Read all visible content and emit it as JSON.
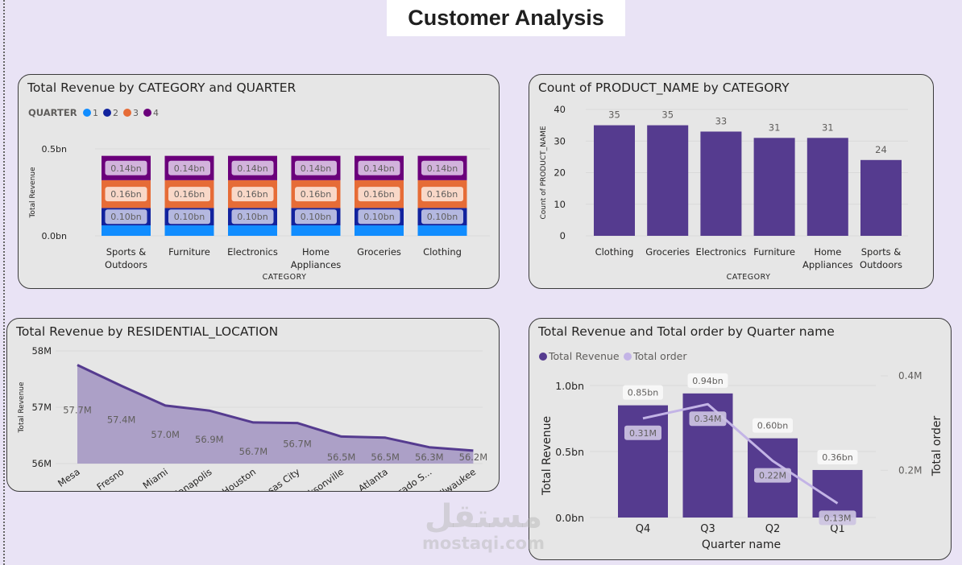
{
  "page": {
    "title": "Customer Analysis",
    "watermark_ar": "مستقل",
    "watermark_en": "mostaqi.com"
  },
  "colors": {
    "background": "#E9E3F5",
    "panel": "#E6E6E6",
    "bar_purple": "#553B8F",
    "line_light_purple": "#C3B4E6",
    "area_fill": "#ACA0C7",
    "q1": "#118DFF",
    "q2": "#12239E",
    "q3": "#E66C37",
    "q4": "#6B007B"
  },
  "chart_data": [
    {
      "id": "revenue-by-category-quarter",
      "type": "bar",
      "stacked": true,
      "title": "Total Revenue by CATEGORY and QUARTER",
      "legend_title": "QUARTER",
      "legend_position": "top-left",
      "xlabel": "CATEGORY",
      "ylabel": "Total Revenue",
      "ylim": [
        0,
        0.5
      ],
      "yticks": [
        {
          "v": 0,
          "label": "0.0bn"
        },
        {
          "v": 0.5,
          "label": "0.5bn"
        }
      ],
      "categories": [
        "Sports & Outdoors",
        "Furniture",
        "Electronics",
        "Home Appliances",
        "Groceries",
        "Clothing"
      ],
      "category_lines": [
        [
          "Sports &",
          "Outdoors"
        ],
        [
          "Furniture"
        ],
        [
          "Electronics"
        ],
        [
          "Home",
          "Appliances"
        ],
        [
          "Groceries"
        ],
        [
          "Clothing"
        ]
      ],
      "series": [
        {
          "name": "1",
          "color": "#118DFF",
          "values": [
            0.06,
            0.06,
            0.06,
            0.06,
            0.06,
            0.06
          ],
          "labels": null
        },
        {
          "name": "2",
          "color": "#12239E",
          "values": [
            0.1,
            0.1,
            0.1,
            0.1,
            0.1,
            0.1
          ],
          "labels": [
            "0.10bn",
            "0.10bn",
            "0.10bn",
            "0.10bn",
            "0.10bn",
            "0.10bn"
          ],
          "label_bg": "#B4B8E0"
        },
        {
          "name": "3",
          "color": "#E66C37",
          "values": [
            0.16,
            0.16,
            0.16,
            0.16,
            0.16,
            0.16
          ],
          "labels": [
            "0.16bn",
            "0.16bn",
            "0.16bn",
            "0.16bn",
            "0.16bn",
            "0.16bn"
          ],
          "label_bg": "#F9D8C8"
        },
        {
          "name": "4",
          "color": "#6B007B",
          "values": [
            0.14,
            0.14,
            0.14,
            0.14,
            0.14,
            0.14
          ],
          "labels": [
            "0.14bn",
            "0.14bn",
            "0.14bn",
            "0.14bn",
            "0.14bn",
            "0.14bn"
          ],
          "label_bg": "#D2B3DC"
        }
      ],
      "grid": true
    },
    {
      "id": "count-product-by-category",
      "type": "bar",
      "title": "Count of PRODUCT_NAME by CATEGORY",
      "xlabel": "CATEGORY",
      "ylabel": "Count of PRODUCT_NAME",
      "ylim": [
        0,
        40
      ],
      "yticks": [
        0,
        10,
        20,
        30,
        40
      ],
      "categories": [
        "Clothing",
        "Groceries",
        "Electronics",
        "Furniture",
        "Home Appliances",
        "Sports & Outdoors"
      ],
      "category_lines": [
        [
          "Clothing"
        ],
        [
          "Groceries"
        ],
        [
          "Electronics"
        ],
        [
          "Furniture"
        ],
        [
          "Home",
          "Appliances"
        ],
        [
          "Sports &",
          "Outdoors"
        ]
      ],
      "values": [
        35,
        35,
        33,
        31,
        31,
        24
      ],
      "labels": [
        "35",
        "35",
        "33",
        "31",
        "31",
        "24"
      ],
      "grid": true
    },
    {
      "id": "revenue-by-location",
      "type": "area",
      "title": "Total Revenue by RESIDENTIAL_LOCATION",
      "xlabel": "RESIDENTIAL_LOCATION",
      "ylabel": "Total Revenue",
      "ylim": [
        56,
        58
      ],
      "yticks": [
        {
          "v": 56,
          "label": "56M"
        },
        {
          "v": 57,
          "label": "57M"
        },
        {
          "v": 58,
          "label": "58M"
        }
      ],
      "categories": [
        "Mesa",
        "Fresno",
        "Miami",
        "Indianapolis",
        "Houston",
        "Kansas City",
        "Jacksonville",
        "Atlanta",
        "Colorado S...",
        "Milwaukee"
      ],
      "values": [
        57.75,
        57.38,
        57.03,
        56.94,
        56.73,
        56.72,
        56.48,
        56.46,
        56.29,
        56.23
      ],
      "labels": [
        "57.7M",
        "57.4M",
        "57.0M",
        "56.9M",
        "56.7M",
        "56.7M",
        "56.5M",
        "56.5M",
        "56.3M",
        "56.2M"
      ],
      "grid": true
    },
    {
      "id": "revenue-and-orders-by-quarter",
      "type": "bar",
      "combo": "bar+line",
      "title": "Total Revenue and Total order by Quarter name",
      "xlabel": "Quarter name",
      "ylabel": "Total Revenue",
      "ylabel_right": "Total order",
      "legend_position": "top-left",
      "legend": [
        {
          "name": "Total Revenue",
          "color": "#553B8F"
        },
        {
          "name": "Total order",
          "color": "#C3B4E6"
        }
      ],
      "categories": [
        "Q4",
        "Q3",
        "Q2",
        "Q1"
      ],
      "ylim": [
        0,
        1.1
      ],
      "yticks": [
        {
          "v": 0,
          "label": "0.0bn"
        },
        {
          "v": 0.5,
          "label": "0.5bn"
        },
        {
          "v": 1.0,
          "label": "1.0bn"
        }
      ],
      "ylim_right": [
        0.1,
        0.45
      ],
      "yticks_right": [
        {
          "v": 0.2,
          "label": "0.2M"
        },
        {
          "v": 0.4,
          "label": "0.4M"
        }
      ],
      "series": [
        {
          "name": "Total Revenue",
          "kind": "bar",
          "values": [
            0.85,
            0.94,
            0.6,
            0.36
          ],
          "labels": [
            "0.85bn",
            "0.94bn",
            "0.60bn",
            "0.36bn"
          ]
        },
        {
          "name": "Total order",
          "kind": "line",
          "axis": "right",
          "values": [
            0.31,
            0.34,
            0.22,
            0.13
          ],
          "labels": [
            "0.31M",
            "0.34M",
            "0.22M",
            "0.13M"
          ]
        }
      ],
      "grid": true
    }
  ]
}
